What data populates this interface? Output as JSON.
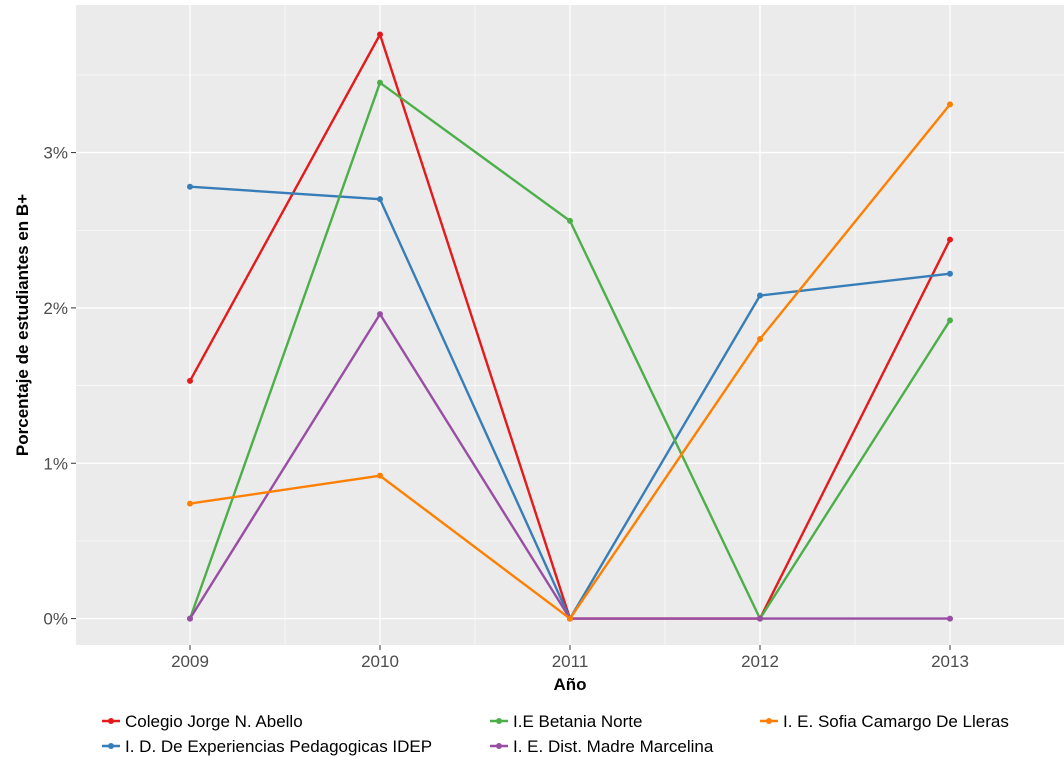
{
  "chart_data": {
    "type": "line",
    "xlabel": "Año",
    "ylabel": "Porcentaje de estudiantes en B+",
    "x": [
      2009,
      2010,
      2011,
      2012,
      2013
    ],
    "xlim": [
      2008.4,
      2013.6
    ],
    "ylim": [
      -0.17,
      3.95
    ],
    "yticks": [
      0,
      1,
      2,
      3
    ],
    "ytick_labels": [
      "0%",
      "1%",
      "2%",
      "3%"
    ],
    "grid": true,
    "legend_position": "bottom",
    "series": [
      {
        "name": "Colegio Jorge N. Abello",
        "color": "#e41a1c",
        "values": [
          1.53,
          3.76,
          0.0,
          0.0,
          2.44
        ]
      },
      {
        "name": "I. D. De Experiencias Pedagogicas IDEP",
        "color": "#377eb8",
        "values": [
          2.78,
          2.7,
          0.0,
          2.08,
          2.22
        ]
      },
      {
        "name": "I.E Betania Norte",
        "color": "#4daf4a",
        "values": [
          0.0,
          3.45,
          2.56,
          0.0,
          1.92
        ]
      },
      {
        "name": "I. E. Dist. Madre Marcelina",
        "color": "#984ea3",
        "values": [
          0.0,
          1.96,
          0.0,
          0.0,
          0.0
        ]
      },
      {
        "name": "I. E. Sofia Camargo De Lleras",
        "color": "#ff7f00",
        "values": [
          0.74,
          0.92,
          0.0,
          1.8,
          3.31
        ]
      }
    ]
  }
}
